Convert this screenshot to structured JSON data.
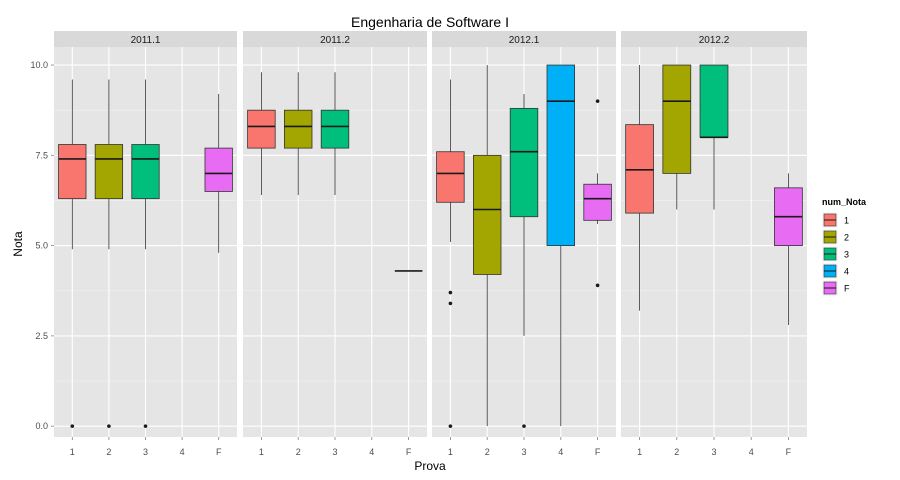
{
  "chart_data": {
    "type": "boxplot",
    "title": "Engenharia de Software I",
    "xlabel": "Prova",
    "ylabel": "Nota",
    "ylim": [
      -0.3,
      10.5
    ],
    "y_ticks": [
      "0.0",
      "2.5",
      "5.0",
      "7.5",
      "10.0"
    ],
    "y_tick_values": [
      0,
      2.5,
      5,
      7.5,
      10
    ],
    "categories": [
      "1",
      "2",
      "3",
      "4",
      "F"
    ],
    "grid": true,
    "legend": {
      "title": "num_Nota",
      "position": "right",
      "items": [
        {
          "label": "1",
          "color": "#F8766D"
        },
        {
          "label": "2",
          "color": "#A3A500"
        },
        {
          "label": "3",
          "color": "#00BF7D"
        },
        {
          "label": "4",
          "color": "#00B0F6"
        },
        {
          "label": "F",
          "color": "#E76BF3"
        }
      ]
    },
    "panels": [
      {
        "label": "2011.1",
        "boxes": [
          {
            "category": "1",
            "whisker_low": 4.9,
            "q1": 6.3,
            "median": 7.4,
            "q3": 7.8,
            "whisker_high": 9.6,
            "outliers": [
              0
            ]
          },
          {
            "category": "2",
            "whisker_low": 4.9,
            "q1": 6.3,
            "median": 7.4,
            "q3": 7.8,
            "whisker_high": 9.6,
            "outliers": [
              0
            ]
          },
          {
            "category": "3",
            "whisker_low": 4.9,
            "q1": 6.3,
            "median": 7.4,
            "q3": 7.8,
            "whisker_high": 9.6,
            "outliers": [
              0
            ]
          },
          {
            "category": "F",
            "whisker_low": 4.8,
            "q1": 6.5,
            "median": 7.0,
            "q3": 7.7,
            "whisker_high": 9.2,
            "outliers": []
          }
        ]
      },
      {
        "label": "2011.2",
        "boxes": [
          {
            "category": "1",
            "whisker_low": 6.4,
            "q1": 7.7,
            "median": 8.3,
            "q3": 8.75,
            "whisker_high": 9.8,
            "outliers": []
          },
          {
            "category": "2",
            "whisker_low": 6.4,
            "q1": 7.7,
            "median": 8.3,
            "q3": 8.75,
            "whisker_high": 9.8,
            "outliers": []
          },
          {
            "category": "3",
            "whisker_low": 6.4,
            "q1": 7.7,
            "median": 8.3,
            "q3": 8.75,
            "whisker_high": 9.8,
            "outliers": []
          },
          {
            "category": "F",
            "whisker_low": 4.3,
            "q1": 4.3,
            "median": 4.3,
            "q3": 4.3,
            "whisker_high": 4.3,
            "outliers": []
          }
        ]
      },
      {
        "label": "2012.1",
        "boxes": [
          {
            "category": "1",
            "whisker_low": 5.1,
            "q1": 6.2,
            "median": 7.0,
            "q3": 7.6,
            "whisker_high": 9.6,
            "outliers": [
              3.7,
              3.4,
              0
            ]
          },
          {
            "category": "2",
            "whisker_low": 0.0,
            "q1": 4.2,
            "median": 6.0,
            "q3": 7.5,
            "whisker_high": 10.0,
            "outliers": []
          },
          {
            "category": "3",
            "whisker_low": 2.5,
            "q1": 5.8,
            "median": 7.6,
            "q3": 8.8,
            "whisker_high": 9.2,
            "outliers": [
              0
            ]
          },
          {
            "category": "4",
            "whisker_low": 0.0,
            "q1": 5.0,
            "median": 9.0,
            "q3": 10.0,
            "whisker_high": 10.0,
            "outliers": []
          },
          {
            "category": "F",
            "whisker_low": 5.6,
            "q1": 5.7,
            "median": 6.3,
            "q3": 6.7,
            "whisker_high": 7.0,
            "outliers": [
              9.0,
              3.9
            ]
          }
        ]
      },
      {
        "label": "2012.2",
        "boxes": [
          {
            "category": "1",
            "whisker_low": 3.2,
            "q1": 5.9,
            "median": 7.1,
            "q3": 8.35,
            "whisker_high": 10.0,
            "outliers": []
          },
          {
            "category": "2",
            "whisker_low": 6.0,
            "q1": 7.0,
            "median": 9.0,
            "q3": 10.0,
            "whisker_high": 10.0,
            "outliers": []
          },
          {
            "category": "3",
            "whisker_low": 6.0,
            "q1": 8.0,
            "median": 8.0,
            "q3": 10.0,
            "whisker_high": 10.0,
            "outliers": []
          },
          {
            "category": "F",
            "whisker_low": 2.8,
            "q1": 5.0,
            "median": 5.8,
            "q3": 6.6,
            "whisker_high": 7.0,
            "outliers": []
          }
        ]
      }
    ]
  }
}
